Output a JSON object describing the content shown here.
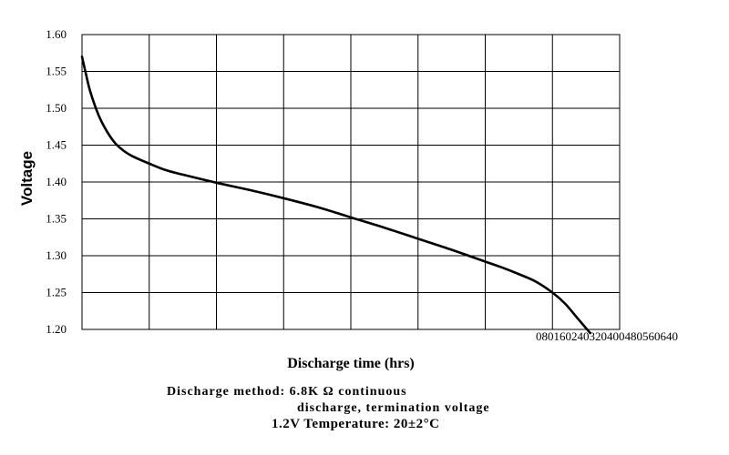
{
  "chart_data": {
    "type": "line",
    "title": "",
    "ylabel": "Voltage",
    "xlabel": "Discharge time (hrs)",
    "y_ticks": [
      "1.20",
      "1.25",
      "1.30",
      "1.35",
      "1.40",
      "1.45",
      "1.50",
      "1.55",
      "1.60"
    ],
    "x_ticks_text": "080160240320400480560640",
    "ylim": [
      1.2,
      1.6
    ],
    "xlim": [
      0,
      640
    ],
    "grid": true,
    "series": [
      {
        "x": [
          0,
          5,
          10,
          20,
          30,
          40,
          50,
          60,
          80,
          100,
          120,
          160,
          200,
          240,
          280,
          320,
          360,
          400,
          440,
          480,
          500,
          520,
          540,
          560,
          575,
          590,
          605
        ],
        "y": [
          1.57,
          1.545,
          1.522,
          1.49,
          1.468,
          1.452,
          1.442,
          1.435,
          1.425,
          1.416,
          1.41,
          1.399,
          1.389,
          1.378,
          1.366,
          1.352,
          1.338,
          1.323,
          1.308,
          1.292,
          1.284,
          1.275,
          1.265,
          1.25,
          1.235,
          1.215,
          1.195
        ]
      }
    ]
  },
  "notes": {
    "line1": "Discharge method: 6.8K Ω continuous",
    "line2": "discharge, termination voltage",
    "line3": "1.2V Temperature:  20±2°C"
  }
}
